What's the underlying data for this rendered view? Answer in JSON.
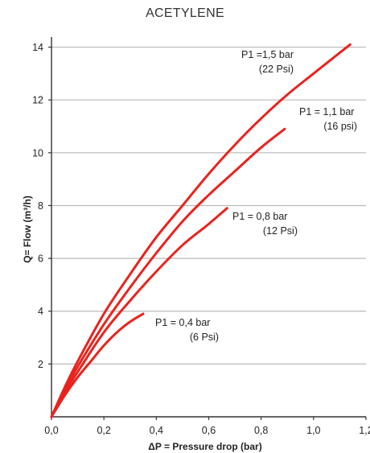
{
  "chart_data": {
    "type": "line",
    "title": "ACETYLENE",
    "xlabel": "ΔP = Pressure drop (bar)",
    "ylabel": "Q= Flow (m³/h)",
    "xlim": [
      0,
      1.2
    ],
    "ylim": [
      0,
      14.2
    ],
    "x_ticks": [
      0,
      0.2,
      0.4,
      0.6,
      0.8,
      1.0,
      1.2
    ],
    "x_tick_labels": [
      "0,0",
      "0,2",
      "0,4",
      "0,6",
      "0,8",
      "1,0",
      "1,2"
    ],
    "y_ticks": [
      2,
      4,
      6,
      8,
      10,
      12,
      14
    ],
    "y_tick_labels": [
      "2",
      "4",
      "6",
      "8",
      "10",
      "12",
      "14"
    ],
    "grid": "horizontal",
    "line_color": "#e8231e",
    "series": [
      {
        "label_lines": [
          "P1 =1,5 bar",
          "(22 Psi)"
        ],
        "x": [
          0,
          0.05,
          0.1,
          0.2,
          0.3,
          0.4,
          0.5,
          0.6,
          0.7,
          0.8,
          0.9,
          1.0,
          1.14
        ],
        "y": [
          0,
          1.1,
          2.1,
          3.9,
          5.4,
          6.8,
          8.0,
          9.2,
          10.3,
          11.3,
          12.2,
          13.0,
          14.1
        ]
      },
      {
        "label_lines": [
          "P1 = 1,1 bar",
          "(16 psi)"
        ],
        "x": [
          0,
          0.05,
          0.1,
          0.2,
          0.3,
          0.4,
          0.5,
          0.6,
          0.7,
          0.8,
          0.89
        ],
        "y": [
          0,
          1.0,
          1.9,
          3.5,
          4.9,
          6.2,
          7.4,
          8.4,
          9.3,
          10.2,
          10.9
        ]
      },
      {
        "label_lines": [
          "P1 = 0,8 bar",
          "(12 Psi)"
        ],
        "x": [
          0,
          0.05,
          0.1,
          0.2,
          0.3,
          0.4,
          0.5,
          0.6,
          0.67
        ],
        "y": [
          0,
          0.9,
          1.7,
          3.2,
          4.4,
          5.5,
          6.5,
          7.3,
          7.9
        ]
      },
      {
        "label_lines": [
          "P1 = 0,4 bar",
          "(6 Psi)"
        ],
        "x": [
          0,
          0.05,
          0.1,
          0.15,
          0.2,
          0.25,
          0.3,
          0.35
        ],
        "y": [
          0,
          0.8,
          1.5,
          2.1,
          2.7,
          3.2,
          3.6,
          3.9
        ]
      }
    ]
  }
}
